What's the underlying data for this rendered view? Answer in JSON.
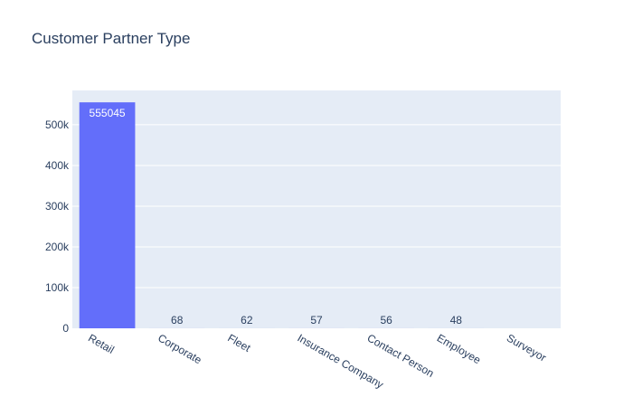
{
  "chart_data": {
    "type": "bar",
    "title": "Customer Partner Type",
    "xlabel": "",
    "ylabel": "",
    "categories": [
      "Retail",
      "Corporate",
      "Fleet",
      "Insurance Company",
      "Contact Person",
      "Employee",
      "Surveyor"
    ],
    "values": [
      555045,
      68,
      62,
      57,
      56,
      48,
      0
    ],
    "value_labels": [
      "555045",
      "68",
      "62",
      "57",
      "56",
      "48",
      ""
    ],
    "ylim": [
      0,
      584258
    ],
    "yticks": [
      0,
      100000,
      200000,
      300000,
      400000,
      500000
    ],
    "ytick_labels": [
      "0",
      "100k",
      "200k",
      "300k",
      "400k",
      "500k"
    ],
    "grid": true,
    "legend": "none"
  },
  "colors": {
    "bar": "#636efa",
    "plot_background": "#e5ecf6",
    "gridline": "#ffffff",
    "text": "#2a3f5f",
    "inside_label": "#ffffff"
  }
}
